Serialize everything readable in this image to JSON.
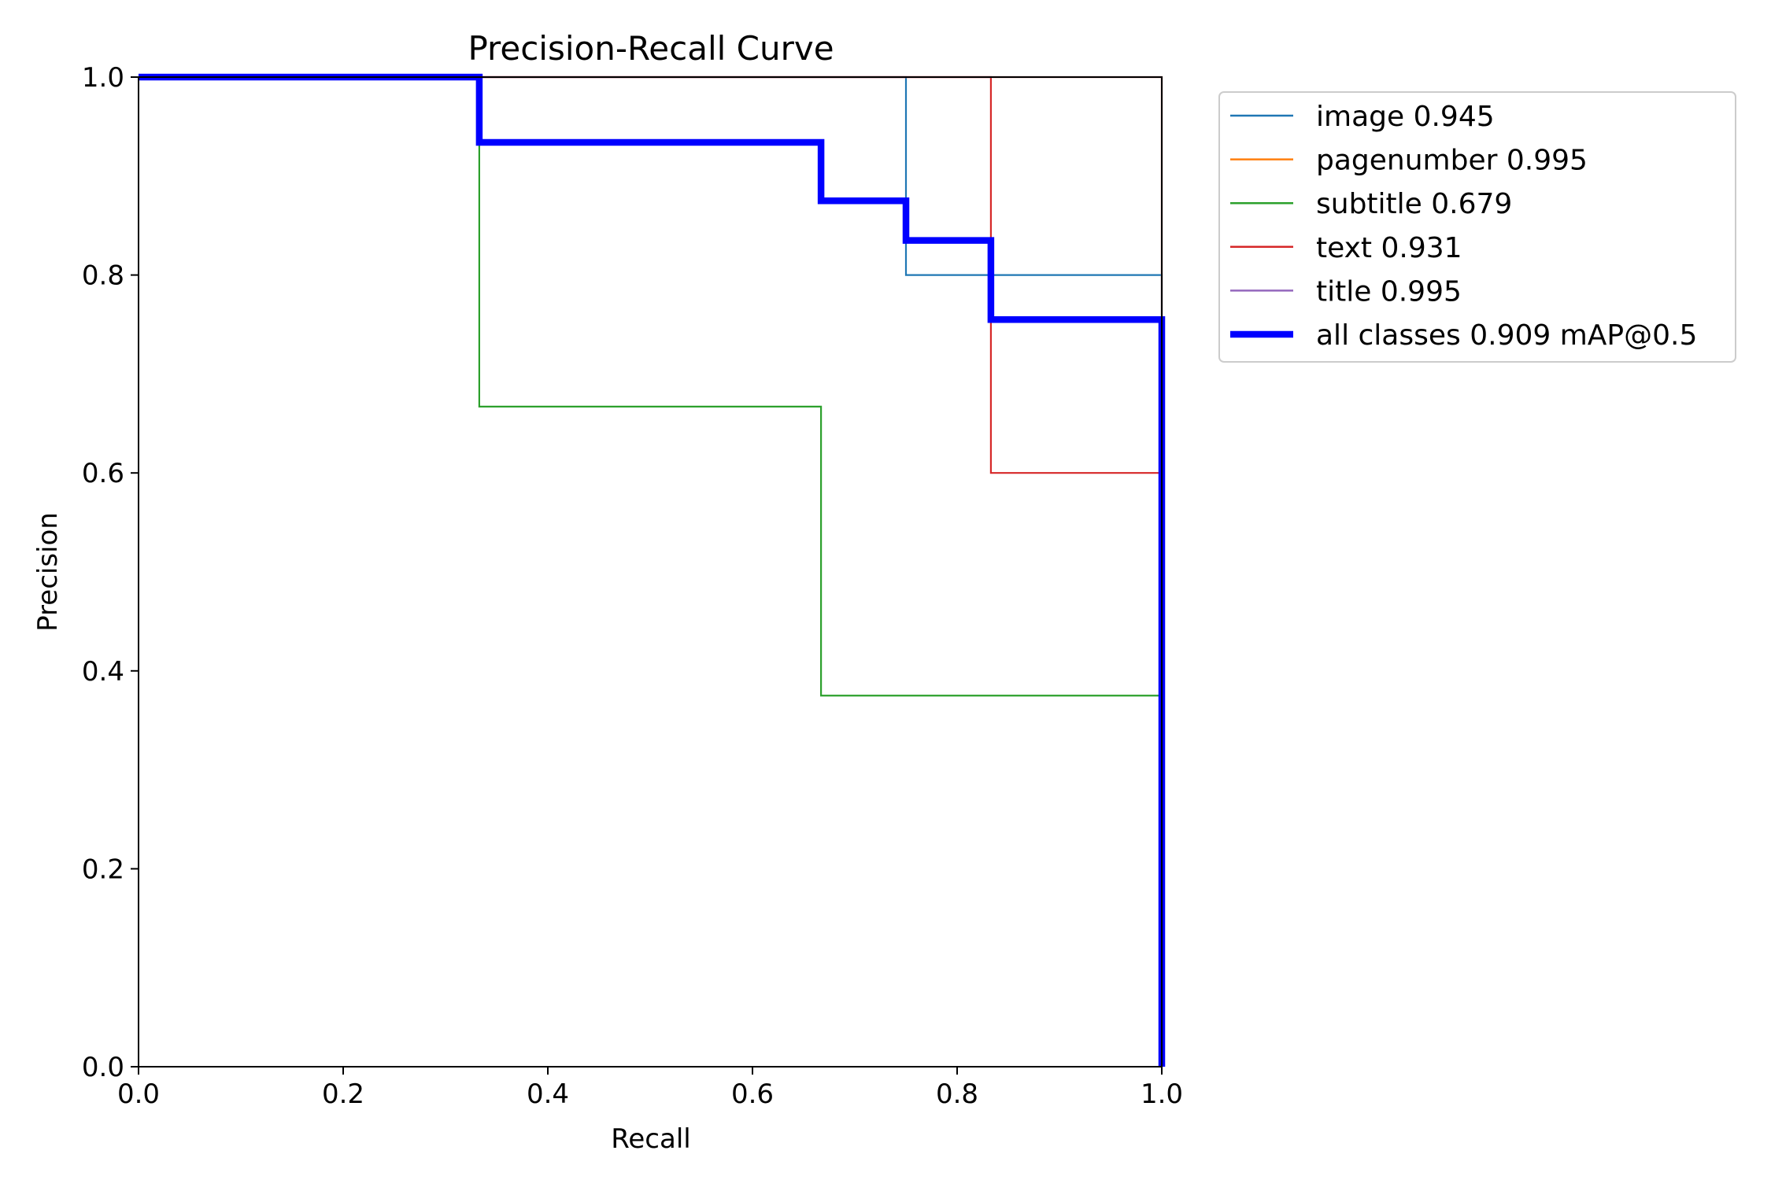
{
  "chart_data": {
    "type": "line",
    "title": "Precision-Recall Curve",
    "xlabel": "Recall",
    "ylabel": "Precision",
    "xlim": [
      0,
      1
    ],
    "ylim": [
      0,
      1
    ],
    "x_ticks": [
      "0.0",
      "0.2",
      "0.4",
      "0.6",
      "0.8",
      "1.0"
    ],
    "y_ticks": [
      "0.0",
      "0.2",
      "0.4",
      "0.6",
      "0.8",
      "1.0"
    ],
    "grid": false,
    "legend_placement": "outside-top-right",
    "series": [
      {
        "name": "image 0.945",
        "color": "#1f77b4",
        "thick": false,
        "points": [
          [
            0,
            1
          ],
          [
            0.75,
            1
          ],
          [
            0.75,
            0.8
          ],
          [
            1,
            0.8
          ],
          [
            1,
            0
          ]
        ]
      },
      {
        "name": "pagenumber 0.995",
        "color": "#ff7f0e",
        "thick": false,
        "points": [
          [
            0,
            1
          ],
          [
            1,
            1
          ],
          [
            1,
            0
          ]
        ]
      },
      {
        "name": "subtitle 0.679",
        "color": "#2ca02c",
        "thick": false,
        "points": [
          [
            0,
            1
          ],
          [
            0.333,
            1
          ],
          [
            0.333,
            0.667
          ],
          [
            0.667,
            0.667
          ],
          [
            0.667,
            0.375
          ],
          [
            1,
            0.375
          ],
          [
            1,
            0
          ]
        ]
      },
      {
        "name": "text 0.931",
        "color": "#d62728",
        "thick": false,
        "points": [
          [
            0,
            1
          ],
          [
            0.833,
            1
          ],
          [
            0.833,
            0.6
          ],
          [
            1,
            0.6
          ],
          [
            1,
            0
          ]
        ]
      },
      {
        "name": "title 0.995",
        "color": "#9467bd",
        "thick": false,
        "points": [
          [
            0,
            1
          ],
          [
            1,
            1
          ],
          [
            1,
            0
          ]
        ]
      },
      {
        "name": "all classes 0.909 mAP@0.5",
        "color": "#0000ff",
        "thick": true,
        "points": [
          [
            0,
            1
          ],
          [
            0.333,
            1
          ],
          [
            0.333,
            0.934
          ],
          [
            0.667,
            0.934
          ],
          [
            0.667,
            0.875
          ],
          [
            0.75,
            0.875
          ],
          [
            0.75,
            0.835
          ],
          [
            0.833,
            0.835
          ],
          [
            0.833,
            0.755
          ],
          [
            1,
            0.755
          ],
          [
            1,
            0
          ]
        ]
      }
    ]
  }
}
